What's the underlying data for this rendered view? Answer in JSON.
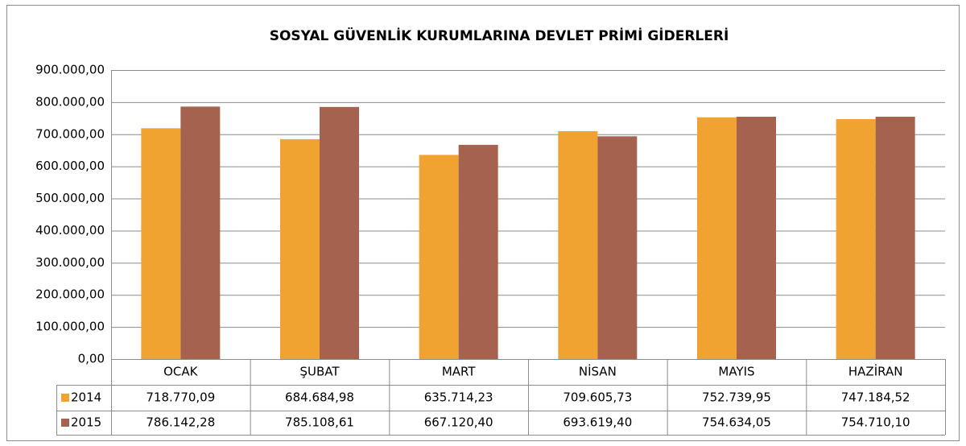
{
  "chart_data": {
    "type": "bar",
    "title": "SOSYAL GÜVENLİK KURUMLARINA DEVLET PRİMİ GİDERLERİ",
    "categories": [
      "OCAK",
      "ŞUBAT",
      "MART",
      "NİSAN",
      "MAYIS",
      "HAZİRAN"
    ],
    "series": [
      {
        "name": "2014",
        "color": "#f0a330",
        "values": [
          718770.09,
          684684.98,
          635714.23,
          709605.73,
          752739.95,
          747184.52
        ],
        "value_labels": [
          "718.770,09",
          "684.684,98",
          "635.714,23",
          "709.605,73",
          "752.739,95",
          "747.184,52"
        ]
      },
      {
        "name": "2015",
        "color": "#a5634f",
        "values": [
          786142.28,
          785108.61,
          667120.4,
          693619.4,
          754634.05,
          754710.1
        ],
        "value_labels": [
          "786.142,28",
          "785.108,61",
          "667.120,40",
          "693.619,40",
          "754.634,05",
          "754.710,10"
        ]
      }
    ],
    "ylim": [
      0,
      900000
    ],
    "yticks": [
      {
        "value": 0,
        "label": "0,00"
      },
      {
        "value": 100000,
        "label": "100.000,00"
      },
      {
        "value": 200000,
        "label": "200.000,00"
      },
      {
        "value": 300000,
        "label": "300.000,00"
      },
      {
        "value": 400000,
        "label": "400.000,00"
      },
      {
        "value": 500000,
        "label": "500.000,00"
      },
      {
        "value": 600000,
        "label": "600.000,00"
      },
      {
        "value": 700000,
        "label": "700.000,00"
      },
      {
        "value": 800000,
        "label": "800.000,00"
      },
      {
        "value": 900000,
        "label": "900.000,00"
      }
    ],
    "grid": true
  }
}
